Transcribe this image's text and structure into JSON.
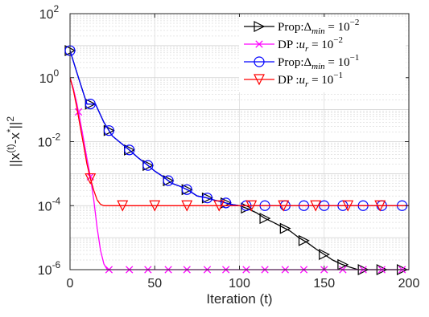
{
  "chart_data": {
    "type": "line",
    "xlabel": "Iteration (t)",
    "ylabel_parts": {
      "pre": "||x",
      "sup1": "(t)",
      "mid": "-x",
      "sup2": "*",
      "post": "||",
      "sup3": "2"
    },
    "xlim": [
      0,
      200
    ],
    "ylim": [
      1e-06,
      100
    ],
    "yscale": "log",
    "grid": "on",
    "legend_position": "top-right",
    "x_ticks": [
      0,
      50,
      100,
      150,
      200
    ],
    "x_tick_labels": [
      "0",
      "50",
      "100",
      "150",
      "200"
    ],
    "y_ticks": [
      1e-06,
      0.0001,
      0.01,
      1,
      100
    ],
    "y_tick_labels": [
      {
        "base": "10",
        "exp": "-6"
      },
      {
        "base": "10",
        "exp": "-4"
      },
      {
        "base": "10",
        "exp": "-2"
      },
      {
        "base": "10",
        "exp": "0"
      },
      {
        "base": "10",
        "exp": "2"
      }
    ],
    "series": [
      {
        "name": "Prop:Δ_min = 10^-2",
        "legend": {
          "pre": "Prop:Δ",
          "sub": "min",
          "eq": " = 10",
          "exp": "−2"
        },
        "color": "#000000",
        "marker": "triangle-right",
        "x": [
          0,
          5,
          10,
          15,
          20,
          25,
          30,
          35,
          40,
          45,
          50,
          55,
          60,
          65,
          70,
          75,
          80,
          85,
          90,
          95,
          100,
          105,
          110,
          115,
          120,
          125,
          130,
          135,
          140,
          145,
          150,
          155,
          160,
          165,
          170,
          175,
          180,
          185,
          190,
          195,
          200
        ],
        "y": [
          7,
          1,
          0.15,
          0.15,
          0.04,
          0.015,
          0.009,
          0.0055,
          0.0032,
          0.002,
          0.0012,
          0.0008,
          0.0005,
          0.0004,
          0.0003,
          0.0002,
          0.00018,
          0.00015,
          0.00013,
          0.00011,
          0.0001,
          8e-05,
          6e-05,
          4e-05,
          3e-05,
          2.2e-05,
          1.6e-05,
          1e-05,
          7e-06,
          4.5e-06,
          3e-06,
          2e-06,
          1.5e-06,
          1.2e-06,
          1e-06,
          1e-06,
          1e-06,
          1e-06,
          1e-06,
          1e-06,
          1e-06
        ],
        "marker_x": [
          0,
          12,
          23,
          35,
          46,
          58,
          69,
          81,
          92,
          104,
          115,
          127,
          138,
          150,
          161,
          173,
          184,
          196
        ]
      },
      {
        "name": "DP :u_r = 10^-2",
        "legend": {
          "pre": "DP :",
          "sub": "r",
          "var": "u",
          "eq": " = 10",
          "exp": "−2"
        },
        "color": "#ff00ff",
        "marker": "x",
        "x": [
          0,
          2,
          4,
          6,
          8,
          10,
          12,
          14,
          16,
          18,
          20,
          22,
          25,
          30,
          40,
          60,
          80,
          100,
          120,
          140,
          160,
          180,
          200
        ],
        "y": [
          1,
          0.45,
          0.16,
          0.045,
          0.012,
          0.003,
          0.0008,
          0.00015,
          2e-05,
          4e-06,
          1.5e-06,
          1e-06,
          1e-06,
          1e-06,
          1e-06,
          1e-06,
          1e-06,
          1e-06,
          1e-06,
          1e-06,
          1e-06,
          1e-06,
          1e-06
        ],
        "marker_x": [
          5,
          12,
          23,
          35,
          46,
          58,
          69,
          81,
          92,
          104,
          115,
          127,
          138,
          150,
          161,
          173,
          184,
          196
        ]
      },
      {
        "name": "Prop:Δ_min = 10^-1",
        "legend": {
          "pre": "Prop:Δ",
          "sub": "min",
          "eq": " = 10",
          "exp": "−1"
        },
        "color": "#0000ff",
        "marker": "circle",
        "x": [
          0,
          5,
          10,
          15,
          20,
          25,
          30,
          35,
          40,
          45,
          50,
          55,
          60,
          65,
          70,
          75,
          80,
          85,
          90,
          95,
          100,
          110,
          120,
          130,
          140,
          150,
          160,
          170,
          180,
          190,
          200
        ],
        "y": [
          7,
          1,
          0.15,
          0.15,
          0.04,
          0.015,
          0.009,
          0.0055,
          0.0032,
          0.002,
          0.0012,
          0.0008,
          0.0005,
          0.0004,
          0.0003,
          0.0002,
          0.00018,
          0.00015,
          0.00013,
          0.00011,
          0.0001,
          0.0001,
          0.0001,
          0.0001,
          0.0001,
          0.0001,
          0.0001,
          0.0001,
          0.0001,
          0.0001,
          0.0001
        ],
        "marker_x": [
          0,
          12,
          23,
          35,
          46,
          58,
          69,
          81,
          92,
          104,
          115,
          127,
          138,
          150,
          161,
          173,
          184,
          196
        ]
      },
      {
        "name": "DP :u_r = 10^-1",
        "legend": {
          "pre": "DP :",
          "sub": "r",
          "var": "u",
          "eq": " = 10",
          "exp": "−1"
        },
        "color": "#ff0000",
        "marker": "triangle-down",
        "x": [
          0,
          2,
          4,
          6,
          8,
          10,
          12,
          14,
          16,
          18,
          20,
          25,
          30,
          50,
          100,
          150,
          200
        ],
        "y": [
          1,
          0.4,
          0.12,
          0.03,
          0.008,
          0.002,
          0.0007,
          0.0003,
          0.00015,
          0.00011,
          0.0001,
          0.0001,
          0.0001,
          0.0001,
          0.0001,
          0.0001,
          0.0001
        ],
        "marker_x": [
          12,
          31,
          50,
          69,
          88,
          107,
          126,
          145,
          164,
          183
        ]
      }
    ]
  }
}
